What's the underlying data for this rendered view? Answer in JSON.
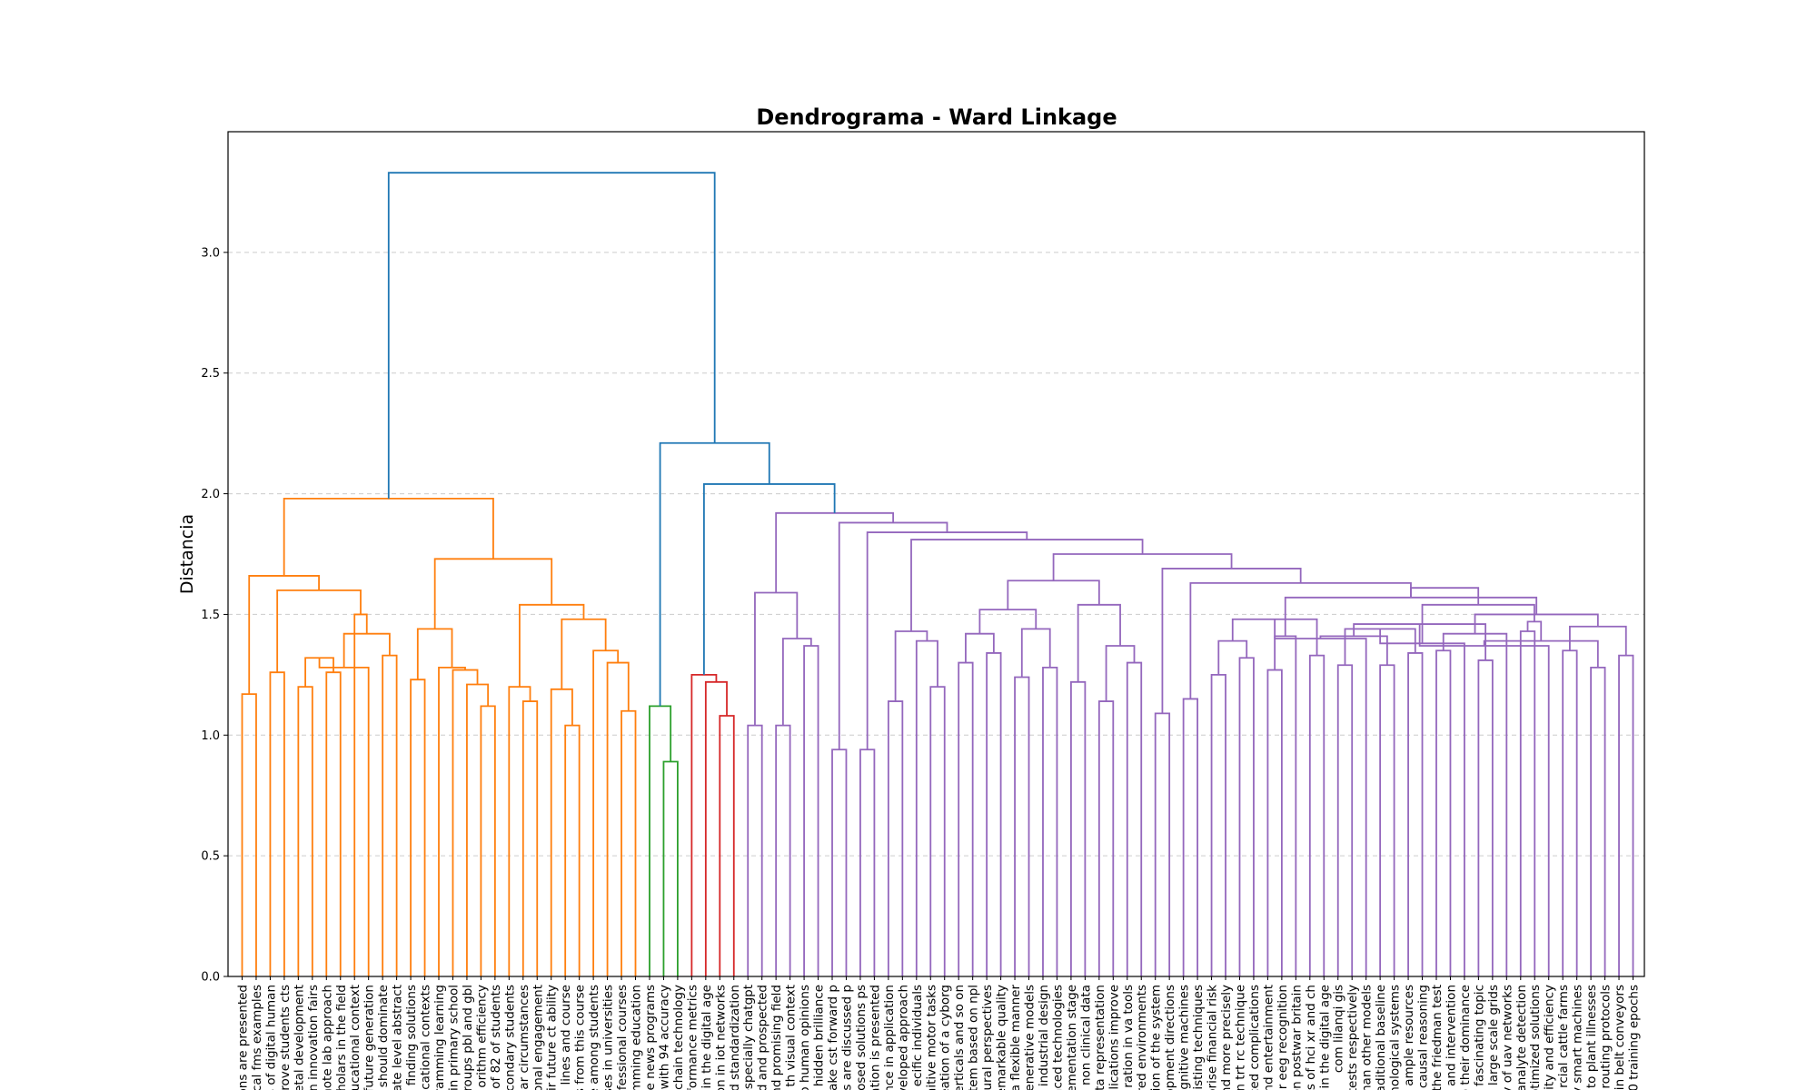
{
  "chart_data": {
    "type": "dendrogram",
    "title": "Dendrograma - Ward Linkage",
    "xlabel": "",
    "ylabel": "Distancia",
    "ylim": [
      0,
      3.5
    ],
    "y_ticks": [
      "0.0",
      "0.5",
      "1.0",
      "1.5",
      "2.0",
      "2.5",
      "3.0"
    ],
    "grid": "horizontal dashed",
    "colors": {
      "orange": "#ff7f0e",
      "green": "#2ca02c",
      "red": "#d62728",
      "purple": "#9467bd",
      "blue": "#1f77b4",
      "grid": "#cccccc"
    },
    "leaves": [
      "ons are presented",
      "cal fms examples",
      "s of digital human",
      "prove students cts",
      "etal development",
      "n innovation fairs",
      "mote lab approach",
      "holars in the field",
      "ucational context",
      "future generation",
      "should dominate",
      "ate level abstract",
      "n finding solutions",
      "ucational contexts",
      "ramming learning",
      "in primary school",
      "roups pbl and gbl",
      "orithm efficiency",
      "of 82 of students",
      "condary students",
      "lar circumstances",
      "onal engagement",
      "ir future ct ability",
      "lines and course",
      "s from this course",
      "se among students",
      "ses in universities",
      "fessional courses",
      "mming education",
      "le news programs",
      "with 94 accuracy",
      "kchain technology",
      "formance metrics",
      "in the digital age",
      "on in iot networks",
      "d standardization",
      "especially chatgpt",
      "d and prospected",
      "nd promising field",
      "th visual context",
      "o human opinions",
      "hidden brilliance",
      "ake cst forward p",
      "rs are discussed p",
      "osed solutions ps",
      "ation is presented",
      "nce in application",
      "veloped approach",
      "ecific individuals",
      "nitive motor tasks",
      "eation of a cyborg",
      "erticals and so on",
      "stem based on npl",
      "tural perspectives",
      "emarkable quality",
      "a flexible manner",
      "enerative models",
      "f industrial design",
      "anced technologies",
      "ementation stage",
      "n non clinical data",
      "ta representation",
      "plications improve",
      "ration in va tools",
      "red environments",
      "ion of the system",
      "opment directions",
      "ognitive machines",
      "xisting techniques",
      "orise financial risk",
      "nd more precisely",
      "n trt rc technique",
      "ced complications",
      "nd entertainment",
      "or eeg recognition",
      "on postwar britain",
      "ls of hci xr and ch",
      "in the digital age",
      "com lilanqi gis",
      "tests respectively",
      "han other models",
      "aditional baseline",
      "nological systems",
      "ample resources",
      "causal reasoning",
      "the friedman test",
      "and intervention",
      "o their dominance",
      "fascinating topic",
      "large scale grids",
      "y of uav networks",
      "analyte detection",
      "ptimized solutions",
      "lity and efficiency",
      "rcial cattle farms",
      "y smart machines",
      "to plant illnesses",
      "routing protocols",
      "in belt conveyors",
      "0 training epochs"
    ],
    "merges": [
      [
        0,
        1,
        1.17,
        "orange"
      ],
      [
        2,
        3,
        1.26,
        "orange"
      ],
      [
        4,
        5,
        1.2,
        "orange"
      ],
      [
        6,
        7,
        1.26,
        "orange"
      ],
      [
        102,
        103,
        1.32,
        "orange"
      ],
      [
        104,
        9,
        1.28,
        "orange"
      ],
      [
        10,
        11,
        1.33,
        "orange"
      ],
      [
        105,
        106,
        1.42,
        "orange"
      ],
      [
        107,
        8,
        1.5,
        "orange"
      ],
      [
        101,
        108,
        1.6,
        "orange"
      ],
      [
        100,
        109,
        1.66,
        "orange"
      ],
      [
        12,
        13,
        1.23,
        "orange"
      ],
      [
        17,
        18,
        1.12,
        "orange"
      ],
      [
        16,
        112,
        1.21,
        "orange"
      ],
      [
        15,
        113,
        1.27,
        "orange"
      ],
      [
        14,
        114,
        1.28,
        "orange"
      ],
      [
        111,
        115,
        1.44,
        "orange"
      ],
      [
        20,
        21,
        1.14,
        "orange"
      ],
      [
        19,
        117,
        1.2,
        "orange"
      ],
      [
        23,
        24,
        1.04,
        "orange"
      ],
      [
        22,
        119,
        1.19,
        "orange"
      ],
      [
        27,
        28,
        1.1,
        "orange"
      ],
      [
        26,
        121,
        1.3,
        "orange"
      ],
      [
        25,
        122,
        1.35,
        "orange"
      ],
      [
        120,
        123,
        1.48,
        "orange"
      ],
      [
        118,
        124,
        1.54,
        "orange"
      ],
      [
        116,
        125,
        1.73,
        "orange"
      ],
      [
        110,
        126,
        1.98,
        "orange"
      ],
      [
        30,
        31,
        0.89,
        "green"
      ],
      [
        29,
        128,
        1.12,
        "green"
      ],
      [
        34,
        35,
        1.08,
        "red"
      ],
      [
        33,
        130,
        1.22,
        "red"
      ],
      [
        32,
        131,
        1.25,
        "red"
      ],
      [
        36,
        37,
        1.04,
        "purple"
      ],
      [
        38,
        39,
        1.04,
        "purple"
      ],
      [
        40,
        41,
        1.37,
        "purple"
      ],
      [
        134,
        135,
        1.4,
        "purple"
      ],
      [
        133,
        136,
        1.59,
        "purple"
      ],
      [
        42,
        43,
        0.94,
        "purple"
      ],
      [
        44,
        45,
        0.94,
        "purple"
      ],
      [
        46,
        47,
        1.14,
        "purple"
      ],
      [
        49,
        50,
        1.2,
        "purple"
      ],
      [
        48,
        141,
        1.39,
        "purple"
      ],
      [
        140,
        142,
        1.43,
        "purple"
      ],
      [
        51,
        52,
        1.3,
        "purple"
      ],
      [
        53,
        54,
        1.34,
        "purple"
      ],
      [
        144,
        145,
        1.42,
        "purple"
      ],
      [
        55,
        56,
        1.24,
        "purple"
      ],
      [
        57,
        58,
        1.28,
        "purple"
      ],
      [
        147,
        148,
        1.44,
        "purple"
      ],
      [
        146,
        149,
        1.52,
        "purple"
      ],
      [
        59,
        60,
        1.22,
        "purple"
      ],
      [
        61,
        62,
        1.14,
        "purple"
      ],
      [
        63,
        64,
        1.3,
        "purple"
      ],
      [
        152,
        153,
        1.37,
        "purple"
      ],
      [
        151,
        154,
        1.54,
        "purple"
      ],
      [
        150,
        155,
        1.64,
        "purple"
      ],
      [
        65,
        66,
        1.09,
        "purple"
      ],
      [
        67,
        68,
        1.15,
        "purple"
      ],
      [
        69,
        70,
        1.25,
        "purple"
      ],
      [
        71,
        72,
        1.32,
        "purple"
      ],
      [
        159,
        160,
        1.39,
        "purple"
      ],
      [
        73,
        74,
        1.27,
        "purple"
      ],
      [
        76,
        77,
        1.33,
        "purple"
      ],
      [
        75,
        162,
        1.41,
        "purple"
      ],
      [
        161,
        163,
        1.48,
        "purple"
      ],
      [
        78,
        79,
        1.29,
        "purple"
      ],
      [
        80,
        165,
        1.4,
        "purple"
      ],
      [
        81,
        82,
        1.29,
        "purple"
      ],
      [
        83,
        84,
        1.34,
        "purple"
      ],
      [
        167,
        168,
        1.41,
        "purple"
      ],
      [
        166,
        169,
        1.44,
        "purple"
      ],
      [
        85,
        86,
        1.35,
        "purple"
      ],
      [
        88,
        89,
        1.31,
        "purple"
      ],
      [
        87,
        171,
        1.38,
        "purple"
      ],
      [
        172,
        90,
        1.42,
        "purple"
      ],
      [
        170,
        173,
        1.46,
        "purple"
      ],
      [
        91,
        92,
        1.43,
        "purple"
      ],
      [
        94,
        95,
        1.35,
        "purple"
      ],
      [
        93,
        176,
        1.37,
        "purple"
      ],
      [
        96,
        97,
        1.28,
        "purple"
      ],
      [
        98,
        99,
        1.33,
        "purple"
      ],
      [
        179,
        180,
        1.39,
        "purple"
      ],
      [
        178,
        181,
        1.45,
        "purple"
      ],
      [
        177,
        182,
        1.47,
        "purple"
      ],
      [
        175,
        183,
        1.5,
        "purple"
      ],
      [
        174,
        184,
        1.54,
        "purple"
      ],
      [
        164,
        185,
        1.57,
        "purple"
      ],
      [
        186,
        187,
        1.61,
        "purple"
      ],
      [
        158,
        187,
        1.63,
        "purple"
      ],
      [
        157,
        189,
        1.69,
        "purple"
      ],
      [
        156,
        190,
        1.75,
        "purple"
      ],
      [
        143,
        191,
        1.81,
        "purple"
      ],
      [
        139,
        192,
        1.84,
        "purple"
      ],
      [
        138,
        193,
        1.88,
        "purple"
      ],
      [
        137,
        194,
        1.92,
        "purple"
      ],
      [
        132,
        195,
        2.04,
        "blue"
      ],
      [
        129,
        196,
        2.21,
        "blue"
      ],
      [
        127,
        197,
        3.33,
        "blue"
      ]
    ]
  }
}
